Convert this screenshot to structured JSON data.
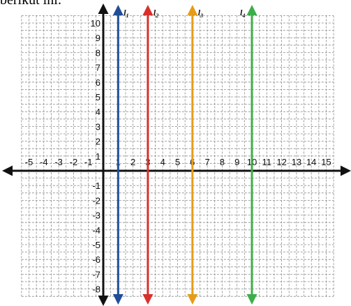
{
  "header": {
    "text": "berikut ini:"
  },
  "chart_data": {
    "type": "line",
    "title": "",
    "xlabel": "",
    "ylabel": "",
    "xlim": [
      -5,
      15
    ],
    "ylim": [
      -8,
      10
    ],
    "grid": true,
    "x_ticks": [
      -5,
      -4,
      -3,
      -2,
      -1,
      1,
      2,
      3,
      4,
      5,
      6,
      7,
      8,
      9,
      10,
      11,
      12,
      13,
      14,
      15
    ],
    "y_ticks": [
      10,
      9,
      8,
      7,
      6,
      5,
      4,
      3,
      2,
      1,
      -1,
      -2,
      -3,
      -4,
      -5,
      -6,
      -7,
      -8
    ],
    "series": [
      {
        "name": "l",
        "sub": "1",
        "x": [
          1,
          1
        ],
        "y": [
          -8,
          10
        ],
        "color": "#1f4e99"
      },
      {
        "name": "l",
        "sub": "2",
        "x": [
          3,
          3
        ],
        "y": [
          -8,
          10
        ],
        "color": "#d9302c"
      },
      {
        "name": "l",
        "sub": "3",
        "x": [
          6,
          6
        ],
        "y": [
          -8,
          10
        ],
        "color": "#e59c1b"
      },
      {
        "name": "l",
        "sub": "4",
        "x": [
          10,
          10
        ],
        "y": [
          -8,
          10
        ],
        "color": "#3cae49"
      }
    ]
  }
}
